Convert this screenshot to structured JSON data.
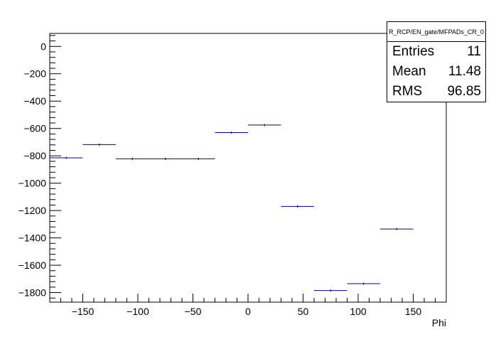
{
  "chart_data": {
    "type": "histogram",
    "title": "",
    "xlabel": "Phi",
    "ylabel": "",
    "xlim": [
      -180,
      180
    ],
    "ylim": [
      -1870,
      95
    ],
    "x_ticks": [
      -150,
      -100,
      -50,
      0,
      50,
      100,
      150
    ],
    "y_ticks": [
      0,
      -200,
      -400,
      -600,
      -800,
      -1000,
      -1200,
      -1400,
      -1600,
      -1800
    ],
    "bin_edges": [
      -180,
      -150,
      -120,
      -90,
      -60,
      -30,
      0,
      30,
      60,
      90,
      120,
      150,
      180
    ],
    "values": [
      -815,
      -718,
      -822,
      -822,
      -822,
      -630,
      -575,
      -1170,
      -1785,
      -1735,
      -1335,
      null
    ],
    "line_color": "#00008b",
    "grid": false
  },
  "stats": {
    "name": "R_RCP/EN_gate/MFPADs_CR_0",
    "entries_label": "Entries",
    "entries_value": "11",
    "mean_label": "Mean",
    "mean_value": "11.48",
    "rms_label": "RMS",
    "rms_value": "96.85"
  }
}
